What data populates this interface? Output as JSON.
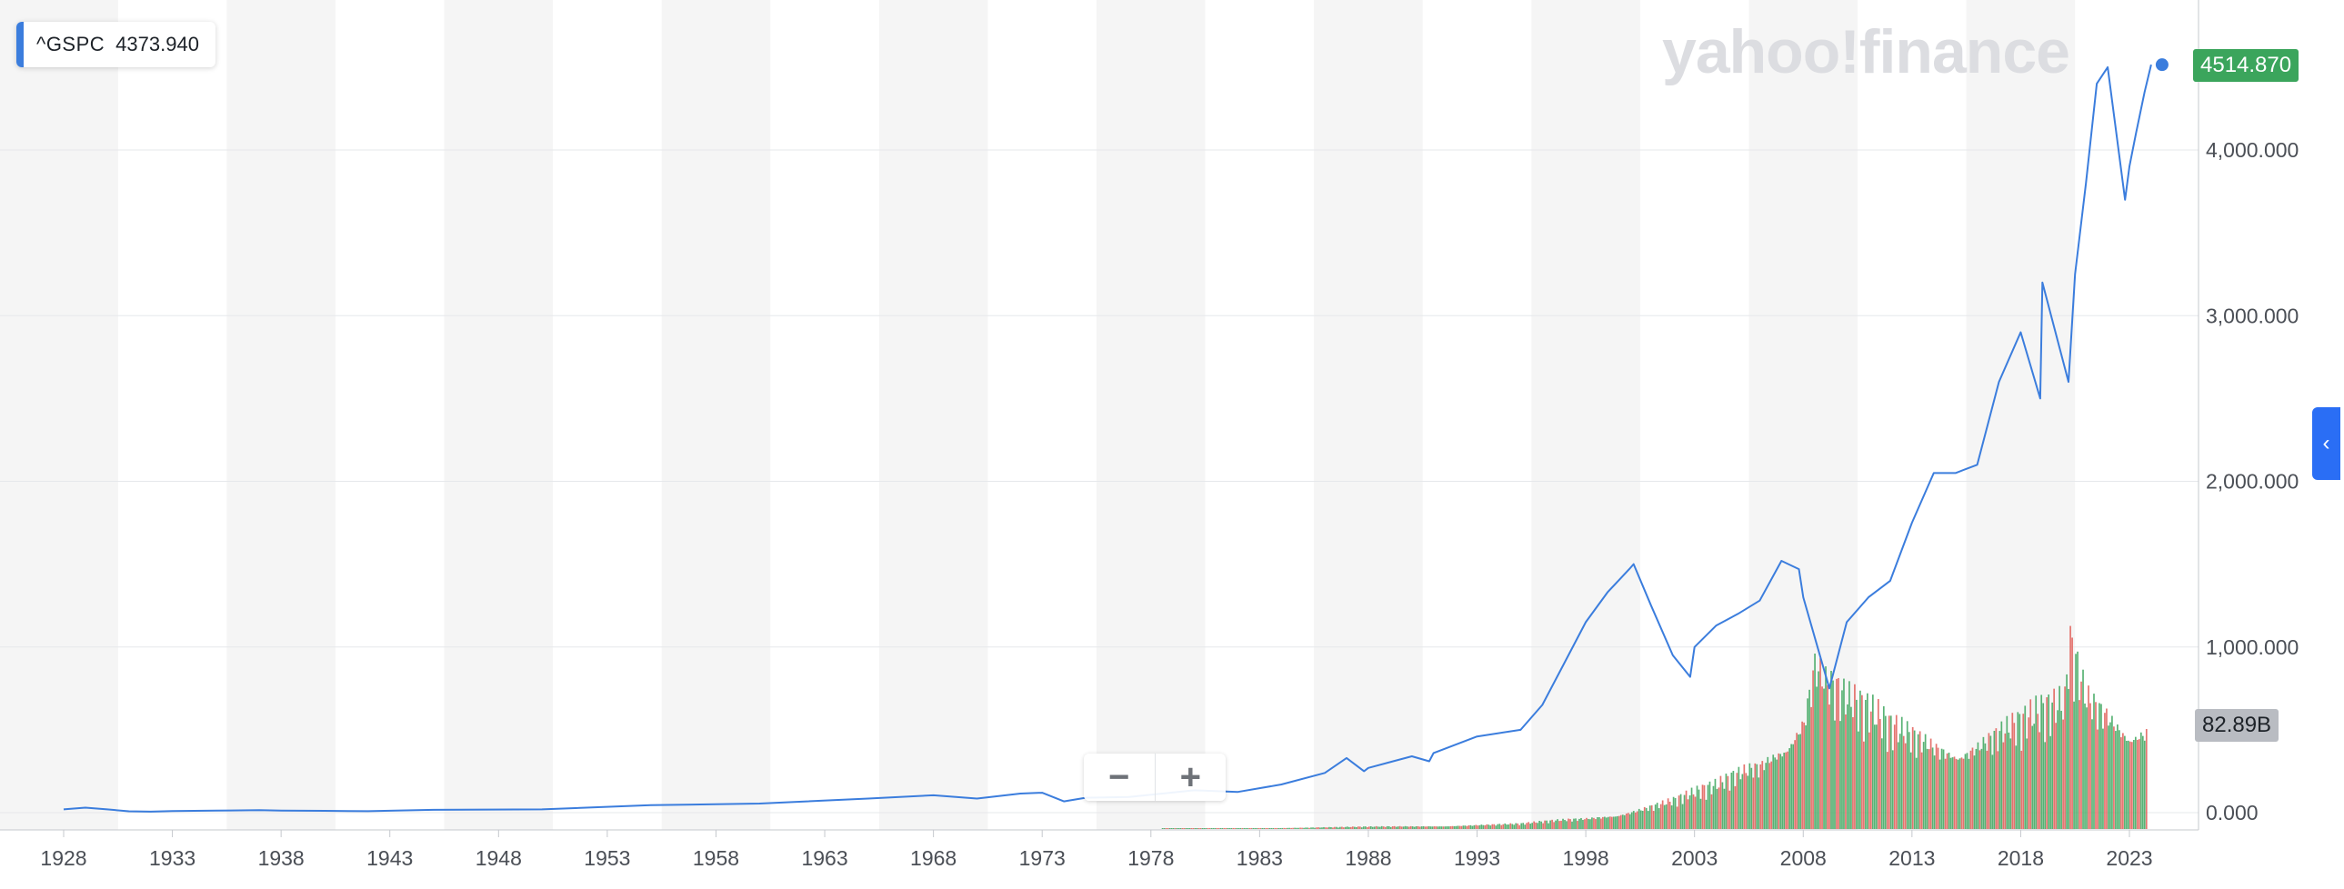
{
  "ticker": {
    "symbol": "^GSPC",
    "value": "4373.940"
  },
  "watermark": "yahoo!finance",
  "last_price_label": "4514.870",
  "last_volume_label": "82.89B",
  "zoom": {
    "out_icon": "minus-icon",
    "in_icon": "plus-icon"
  },
  "side_tab": {
    "icon": "chevron-left-icon"
  },
  "colors": {
    "line": "#3b7ddd",
    "volume_up": "#3ba55c",
    "volume_down": "#e05a55",
    "band": "#f5f5f5",
    "price_flag": "#3ba55c",
    "volume_flag": "#b9bcc2"
  },
  "chart_data": {
    "type": "line",
    "title": "",
    "xlabel": "",
    "ylabel": "",
    "xlim": [
      1927,
      2025
    ],
    "ylim": [
      -50,
      4750
    ],
    "x_ticks": [
      "1928",
      "1933",
      "1938",
      "1943",
      "1948",
      "1953",
      "1958",
      "1963",
      "1968",
      "1973",
      "1978",
      "1983",
      "1988",
      "1993",
      "1998",
      "2003",
      "2008",
      "2013",
      "2018",
      "2023"
    ],
    "y_ticks": [
      "0.000",
      "1,000.000",
      "2,000.000",
      "3,000.000",
      "4,000.000"
    ],
    "y_tick_values": [
      0,
      1000,
      2000,
      3000,
      4000
    ],
    "grid": true,
    "legend": "none",
    "series": [
      {
        "name": "^GSPC",
        "x": [
          1928,
          1929,
          1930,
          1931,
          1932,
          1933,
          1935,
          1937,
          1938,
          1940,
          1942,
          1945,
          1950,
          1955,
          1960,
          1965,
          1968,
          1970,
          1972,
          1973,
          1974,
          1975,
          1977,
          1980,
          1982,
          1984,
          1986,
          1987,
          1987.8,
          1988,
          1990,
          1990.8,
          1991,
          1993,
          1995,
          1996,
          1997,
          1998,
          1999,
          2000,
          2000.2,
          2001,
          2002,
          2002.8,
          2003,
          2004,
          2005,
          2006,
          2007,
          2007.8,
          2008,
          2009.2,
          2010,
          2011,
          2012,
          2013,
          2014,
          2015,
          2016,
          2017,
          2018,
          2018.9,
          2019,
          2020.2,
          2020.5,
          2021,
          2021.5,
          2022,
          2022.8,
          2023,
          2023.3,
          2023.7,
          2024
        ],
        "values": [
          20,
          30,
          20,
          8,
          6,
          10,
          12,
          15,
          12,
          11,
          9,
          17,
          20,
          45,
          55,
          85,
          105,
          85,
          115,
          120,
          68,
          90,
          95,
          135,
          125,
          170,
          240,
          330,
          250,
          270,
          340,
          310,
          360,
          460,
          500,
          650,
          900,
          1150,
          1330,
          1470,
          1500,
          1250,
          950,
          820,
          1000,
          1130,
          1200,
          1280,
          1520,
          1470,
          1300,
          750,
          1150,
          1300,
          1400,
          1750,
          2050,
          2050,
          2100,
          2600,
          2900,
          2500,
          3200,
          2600,
          3250,
          3800,
          4400,
          4500,
          3700,
          3900,
          4100,
          4350,
          4515
        ]
      }
    ],
    "volume": {
      "x": [
        1980,
        1985,
        1990,
        1995,
        1998,
        2000,
        2002,
        2004,
        2006,
        2008,
        2008.5,
        2009,
        2010,
        2011,
        2012,
        2014,
        2016,
        2018,
        2020,
        2020.2,
        2021,
        2022,
        2023,
        2024
      ],
      "values": [
        2,
        5,
        10,
        18,
        40,
        70,
        100,
        150,
        250,
        450,
        650,
        550,
        450,
        400,
        350,
        330,
        340,
        370,
        430,
        650,
        480,
        460,
        420,
        400
      ],
      "unit": "B"
    }
  }
}
